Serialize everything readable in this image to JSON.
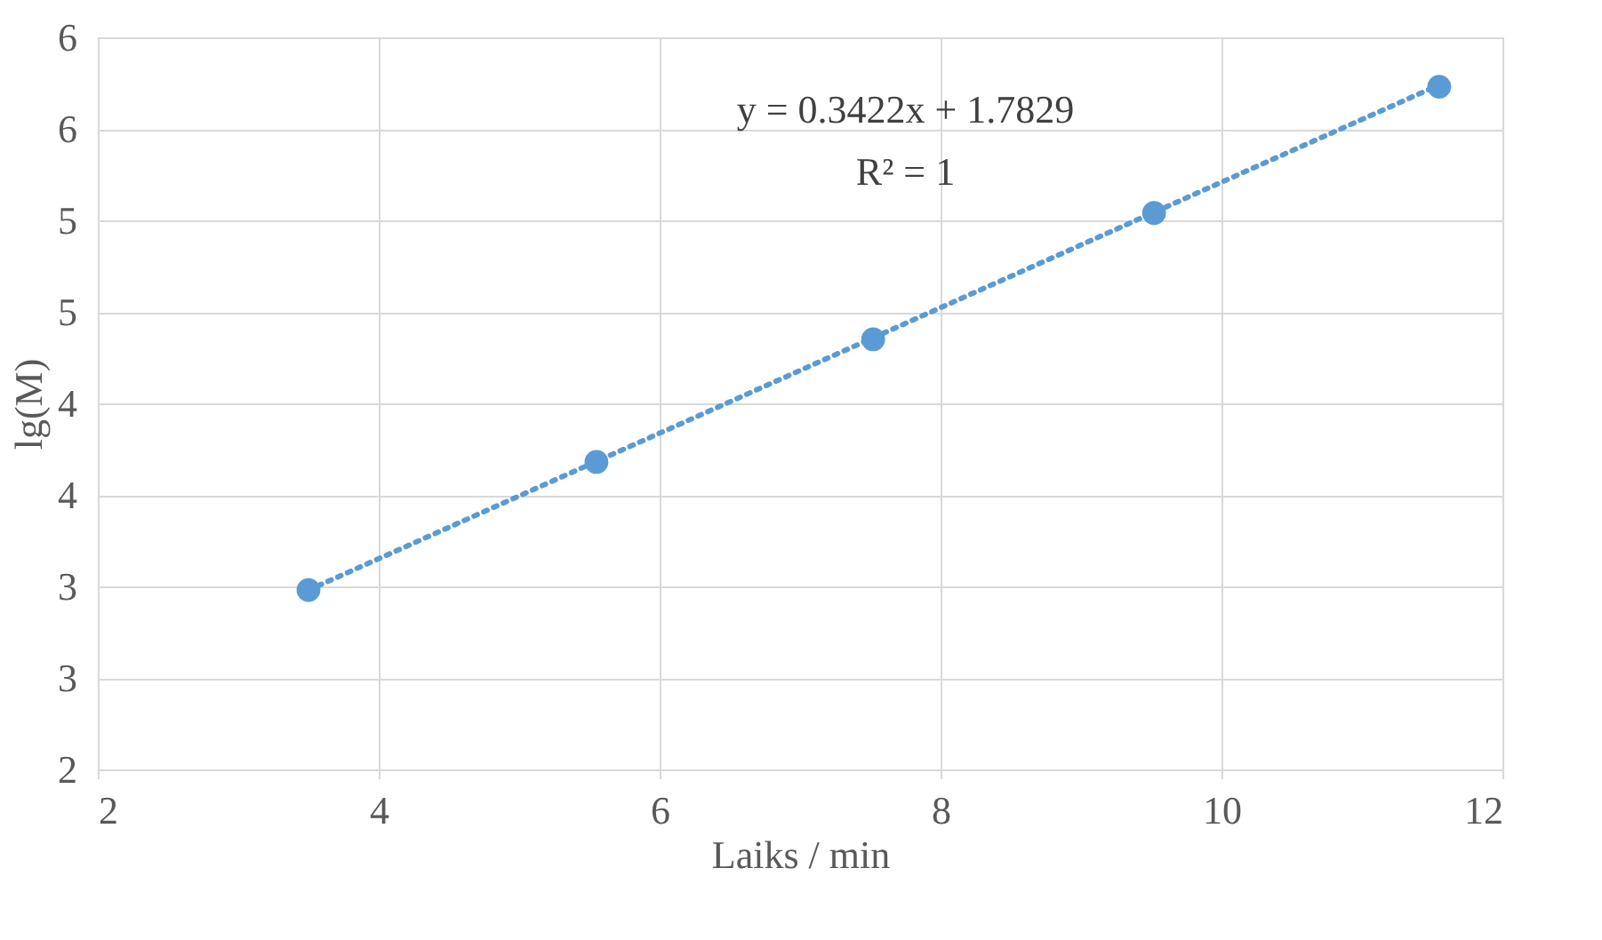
{
  "chart_data": {
    "type": "scatter",
    "xlabel": "Laiks / min",
    "ylabel": "lg(M)",
    "annotations": [
      "y = 0.3422x + 1.7829",
      "R² = 1"
    ],
    "series": [
      {
        "color": "#5b9bd5",
        "marker": "circle",
        "x": [
          3.5,
          5.55,
          7.52,
          9.52,
          11.55
        ],
        "values": [
          2.98,
          3.68,
          4.35,
          5.04,
          5.73
        ]
      },
      {
        "type": "line",
        "color": "#5b9bd5",
        "line_style": "dotted",
        "x": [
          3.5,
          11.55
        ],
        "values": [
          2.98,
          5.74
        ]
      }
    ],
    "xlim": [
      2,
      12
    ],
    "xticks": [
      2,
      4,
      6,
      8,
      10,
      12
    ],
    "ylim": [
      2,
      6
    ],
    "yticks": [
      2,
      {
        "value": 2.5,
        "label": "3"
      },
      3,
      {
        "value": 3.5,
        "label": "4"
      },
      4,
      {
        "value": 4.5,
        "label": "5"
      },
      5,
      {
        "value": 5.5,
        "label": "6"
      },
      6
    ],
    "grid": true,
    "legend": false
  }
}
